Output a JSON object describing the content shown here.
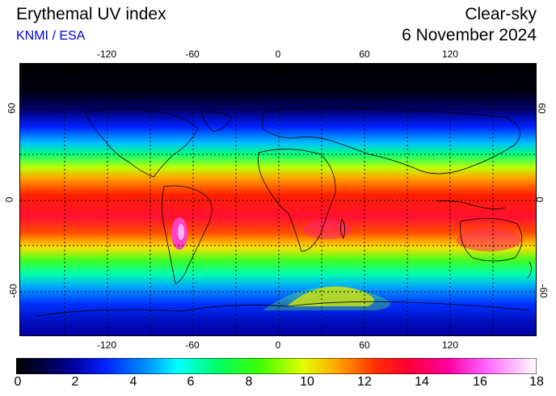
{
  "header": {
    "title": "Erythemal UV index",
    "source": "KNMI / ESA",
    "condition": "Clear-sky",
    "date": "6 November 2024"
  },
  "map": {
    "lon_labels": [
      "-120",
      "-60",
      "0",
      "60",
      "120"
    ],
    "lat_labels": [
      "60",
      "0",
      "-60"
    ]
  },
  "colorbar": {
    "labels": [
      "0",
      "2",
      "4",
      "6",
      "8",
      "10",
      "12",
      "14",
      "16",
      "18"
    ],
    "min": 0,
    "max": 18
  }
}
